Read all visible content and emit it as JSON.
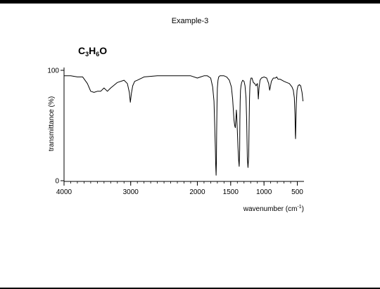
{
  "slide": {
    "title": "Example-3",
    "formula": {
      "c": "C",
      "c_count": "3",
      "h": "H",
      "h_count": "6",
      "o": "O"
    }
  },
  "chart_data": {
    "type": "line",
    "title": "",
    "xlabel_main": "wavenumber (cm",
    "xlabel_sup": "-1",
    "xlabel_end": ")",
    "ylabel": "transmittance (%)",
    "xlim": [
      4000,
      400
    ],
    "ylim": [
      0,
      100
    ],
    "x_ticks": [
      4000,
      3000,
      2000,
      1500,
      1000,
      500
    ],
    "x_tick_labels": [
      "4000",
      "3000",
      "2000",
      "1500",
      "1000",
      "500"
    ],
    "y_ticks": [
      0,
      100
    ],
    "y_tick_labels": [
      "0",
      "100"
    ],
    "grid": false,
    "series": [
      {
        "color": "#000000",
        "x": [
          4000,
          3900,
          3800,
          3720,
          3650,
          3600,
          3550,
          3500,
          3450,
          3400,
          3350,
          3300,
          3200,
          3100,
          3050,
          3020,
          3005,
          2990,
          2970,
          2940,
          2900,
          2800,
          2600,
          2400,
          2200,
          2100,
          2000,
          1950,
          1900,
          1850,
          1800,
          1770,
          1750,
          1740,
          1730,
          1725,
          1719,
          1714,
          1710,
          1705,
          1700,
          1690,
          1680,
          1660,
          1640,
          1600,
          1560,
          1520,
          1490,
          1470,
          1450,
          1440,
          1430,
          1425,
          1420,
          1415,
          1410,
          1400,
          1390,
          1380,
          1372,
          1365,
          1362,
          1358,
          1352,
          1345,
          1335,
          1320,
          1300,
          1285,
          1270,
          1260,
          1250,
          1240,
          1230,
          1222,
          1217,
          1212,
          1205,
          1195,
          1180,
          1160,
          1140,
          1120,
          1100,
          1092,
          1085,
          1075,
          1060,
          1040,
          1000,
          960,
          930,
          915,
          905,
          890,
          860,
          830,
          810,
          790,
          760,
          730,
          700,
          660,
          620,
          580,
          560,
          545,
          535,
          530,
          527,
          522,
          515,
          505,
          490,
          470,
          450,
          430,
          415
        ],
        "y": [
          95,
          95,
          94,
          94,
          88,
          81,
          80,
          81,
          81,
          84,
          81,
          84,
          89,
          91,
          88,
          80,
          71,
          79,
          86,
          90,
          91,
          94,
          95,
          95,
          95,
          95,
          93,
          94,
          95,
          95,
          93,
          85,
          72,
          50,
          30,
          15,
          5,
          16,
          45,
          70,
          84,
          91,
          94,
          95,
          95,
          95,
          94,
          91,
          85,
          74,
          55,
          50,
          48,
          53,
          58,
          64,
          60,
          45,
          30,
          18,
          13,
          28,
          55,
          72,
          82,
          86,
          89,
          91,
          90,
          86,
          75,
          55,
          20,
          12,
          22,
          55,
          75,
          85,
          90,
          93,
          93,
          89,
          88,
          86,
          88,
          82,
          74,
          84,
          91,
          93,
          94,
          93,
          88,
          82,
          85,
          90,
          93,
          93,
          94,
          92,
          92,
          91,
          90,
          89,
          88,
          85,
          82,
          75,
          60,
          42,
          38,
          50,
          70,
          82,
          86,
          87,
          86,
          80,
          72
        ]
      }
    ]
  }
}
